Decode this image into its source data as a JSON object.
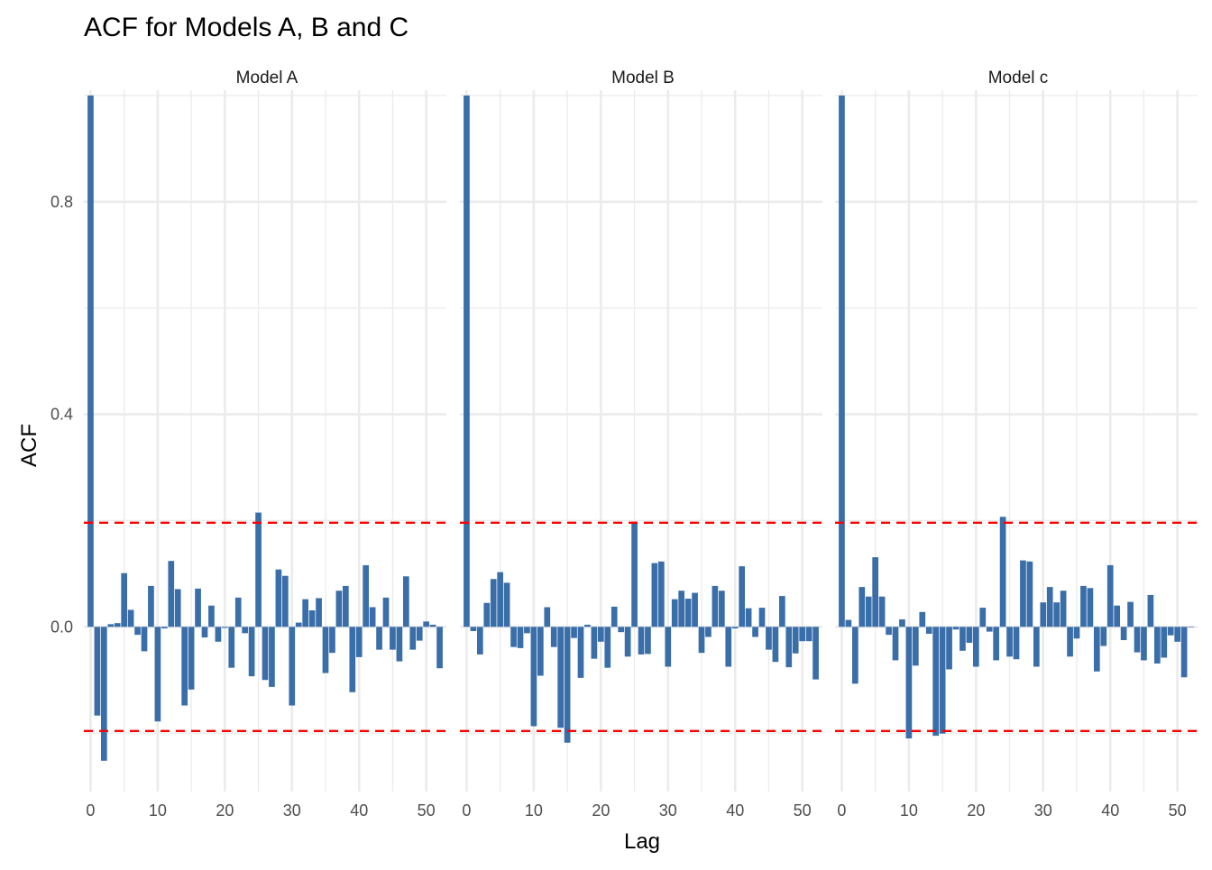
{
  "chart_data": {
    "type": "bar",
    "title": "ACF for Models A, B and C",
    "xlabel": "Lag",
    "ylabel": "ACF",
    "xlim": [
      -1,
      53
    ],
    "ylim": [
      -0.31,
      1.01
    ],
    "x_ticks": [
      "0",
      "10",
      "20",
      "30",
      "40",
      "50"
    ],
    "x_tick_values": [
      0,
      10,
      20,
      30,
      40,
      50
    ],
    "y_ticks": [
      "0.0",
      "0.4",
      "0.8"
    ],
    "y_tick_values": [
      0.0,
      0.4,
      0.8
    ],
    "y_minor_gridlines": [
      -0.2,
      0.2,
      0.6,
      1.0
    ],
    "grid": true,
    "confidence_bounds": [
      0.196,
      -0.196
    ],
    "bar_color": "#3A6EA9",
    "bound_color": "#FF0000",
    "panels": [
      {
        "name": "Model A",
        "lags": [
          0,
          1,
          2,
          3,
          4,
          5,
          6,
          7,
          8,
          9,
          10,
          11,
          12,
          13,
          14,
          15,
          16,
          17,
          18,
          19,
          20,
          21,
          22,
          23,
          24,
          25,
          26,
          27,
          28,
          29,
          30,
          31,
          32,
          33,
          34,
          35,
          36,
          37,
          38,
          39,
          40,
          41,
          42,
          43,
          44,
          45,
          46,
          47,
          48,
          49,
          50,
          51,
          52
        ],
        "values": [
          1.0,
          -0.167,
          -0.252,
          0.005,
          0.007,
          0.101,
          0.032,
          -0.015,
          -0.046,
          0.077,
          -0.178,
          -0.003,
          0.124,
          0.071,
          -0.148,
          -0.118,
          0.072,
          -0.02,
          0.04,
          -0.028,
          -0.002,
          -0.077,
          0.055,
          -0.012,
          -0.093,
          0.215,
          -0.1,
          -0.113,
          0.108,
          0.096,
          -0.148,
          0.008,
          0.052,
          0.031,
          0.054,
          -0.087,
          -0.049,
          0.068,
          0.077,
          -0.123,
          -0.057,
          0.116,
          0.037,
          -0.043,
          0.055,
          -0.043,
          -0.065,
          0.095,
          -0.043,
          -0.026,
          0.01,
          0.004,
          -0.078
        ]
      },
      {
        "name": "Model B",
        "lags": [
          0,
          1,
          2,
          3,
          4,
          5,
          6,
          7,
          8,
          9,
          10,
          11,
          12,
          13,
          14,
          15,
          16,
          17,
          18,
          19,
          20,
          21,
          22,
          23,
          24,
          25,
          26,
          27,
          28,
          29,
          30,
          31,
          32,
          33,
          34,
          35,
          36,
          37,
          38,
          39,
          40,
          41,
          42,
          43,
          44,
          45,
          46,
          47,
          48,
          49,
          50,
          51,
          52
        ],
        "values": [
          1.0,
          -0.008,
          -0.052,
          0.045,
          0.09,
          0.103,
          0.083,
          -0.038,
          -0.04,
          -0.012,
          -0.187,
          -0.092,
          0.037,
          -0.038,
          -0.19,
          -0.218,
          -0.021,
          -0.096,
          0.004,
          -0.06,
          -0.028,
          -0.077,
          0.038,
          -0.01,
          -0.056,
          0.198,
          -0.052,
          -0.051,
          0.12,
          0.123,
          -0.075,
          0.052,
          0.068,
          0.053,
          0.064,
          -0.049,
          -0.019,
          0.077,
          0.068,
          -0.075,
          -0.003,
          0.114,
          0.035,
          -0.019,
          0.036,
          -0.043,
          -0.066,
          0.058,
          -0.076,
          -0.05,
          -0.027,
          -0.027,
          -0.099
        ]
      },
      {
        "name": "Model c",
        "lags": [
          0,
          1,
          2,
          3,
          4,
          5,
          6,
          7,
          8,
          9,
          10,
          11,
          12,
          13,
          14,
          15,
          16,
          17,
          18,
          19,
          20,
          21,
          22,
          23,
          24,
          25,
          26,
          27,
          28,
          29,
          30,
          31,
          32,
          33,
          34,
          35,
          36,
          37,
          38,
          39,
          40,
          41,
          42,
          43,
          44,
          45,
          46,
          47,
          48,
          49,
          50,
          51,
          52
        ],
        "values": [
          1.0,
          0.013,
          -0.107,
          0.075,
          0.057,
          0.131,
          0.057,
          -0.015,
          -0.063,
          0.014,
          -0.21,
          -0.073,
          0.028,
          -0.013,
          -0.205,
          -0.201,
          -0.08,
          -0.005,
          -0.045,
          -0.03,
          -0.075,
          0.036,
          -0.009,
          -0.063,
          0.207,
          -0.056,
          -0.061,
          0.125,
          0.123,
          -0.075,
          0.046,
          0.075,
          0.046,
          0.068,
          -0.056,
          -0.022,
          0.077,
          0.073,
          -0.084,
          -0.036,
          0.116,
          0.04,
          -0.025,
          0.047,
          -0.048,
          -0.063,
          0.06,
          -0.069,
          -0.058,
          -0.016,
          -0.028,
          -0.095,
          0.0
        ]
      }
    ]
  }
}
